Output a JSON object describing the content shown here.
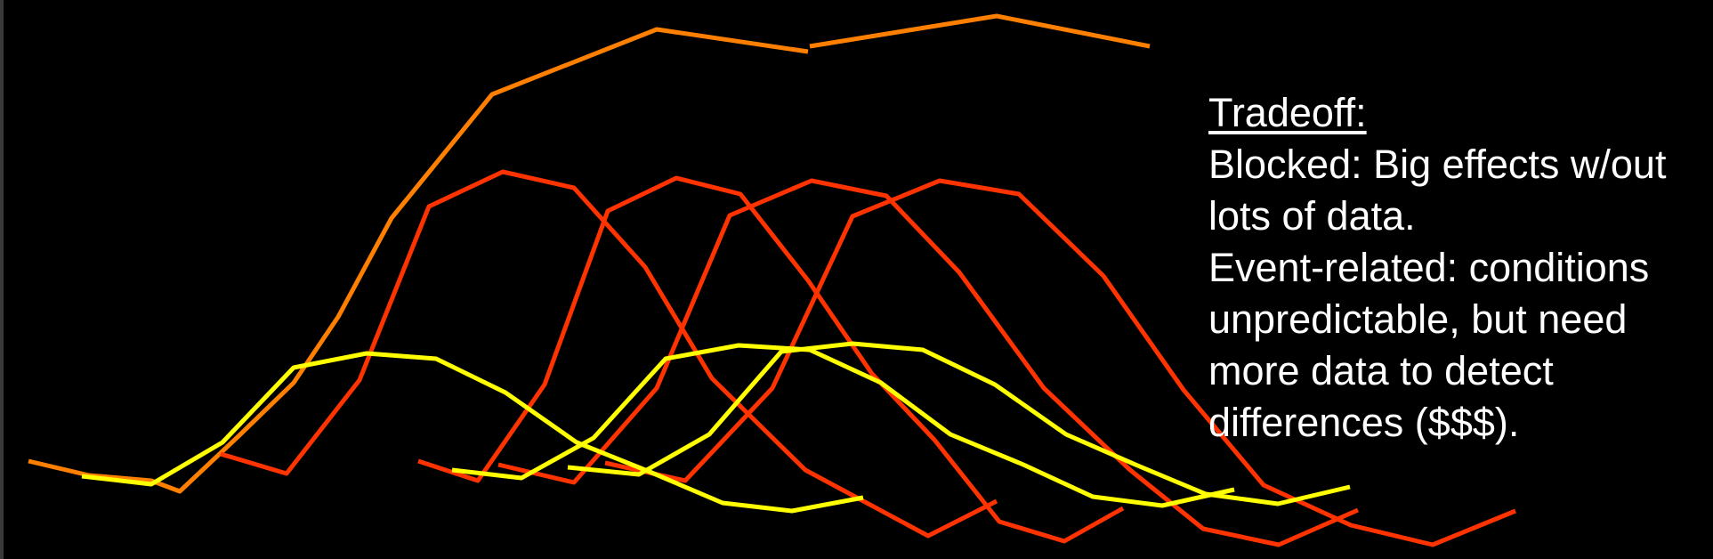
{
  "caption": {
    "heading": "Tradeoff:",
    "lines": [
      "Blocked: Big effects w/out",
      "lots of data.",
      "Event-related: conditions",
      "unpredictable, but need",
      "more data to detect",
      "differences ($$$)."
    ]
  },
  "colors": {
    "background": "#000000",
    "blocked_curve": "#ff7f00",
    "event_response": "#ff3300",
    "event_baseline": "#ffff00",
    "text": "#ffffff"
  }
}
